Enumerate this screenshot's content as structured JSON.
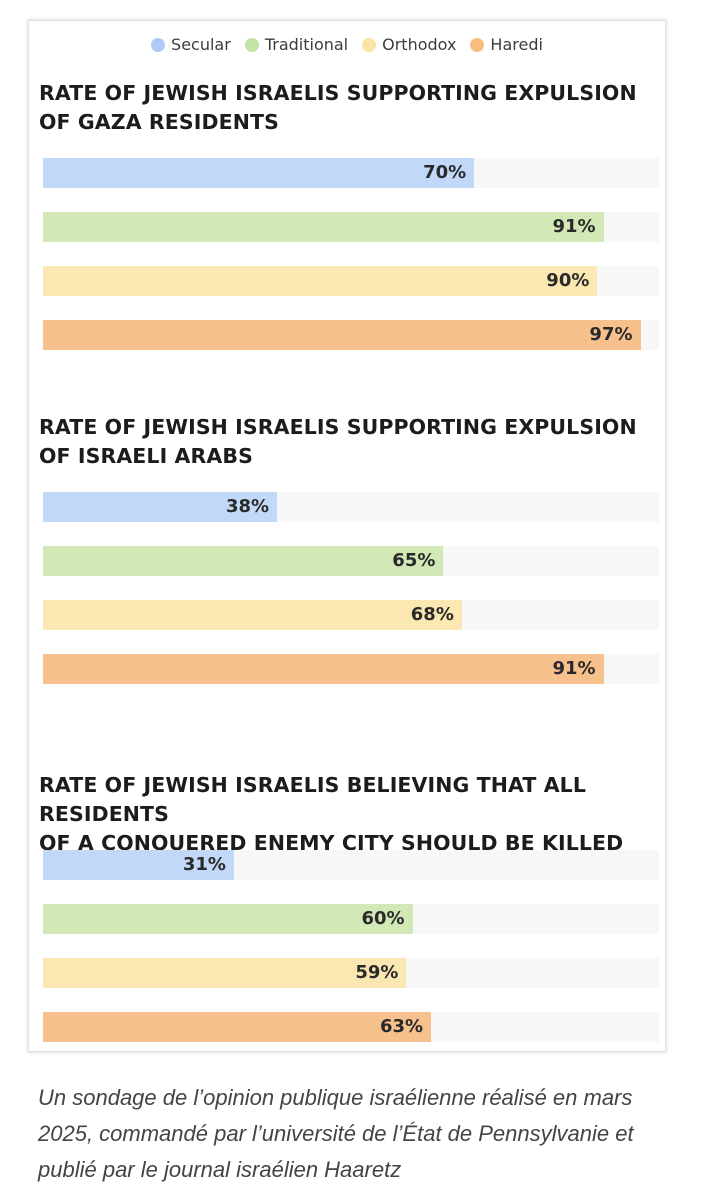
{
  "legend": [
    {
      "label": "Secular",
      "color": "#aecbf6"
    },
    {
      "label": "Traditional",
      "color": "#c5e3a4"
    },
    {
      "label": "Orthodox",
      "color": "#fbe4a6"
    },
    {
      "label": "Haredi",
      "color": "#f7bc80"
    }
  ],
  "bar_colors": {
    "Secular": "#c2d8f8",
    "Traditional": "#d2e8b6",
    "Orthodox": "#fbe7b2",
    "Haredi": "#f7c18e"
  },
  "chart_data": [
    {
      "type": "bar",
      "orientation": "horizontal",
      "title": "RATE OF JEWISH ISRAELIS SUPPORTING EXPULSION OF GAZA RESIDENTS",
      "title_lines": [
        "RATE OF JEWISH ISRAELIS SUPPORTING EXPULSION",
        "OF GAZA RESIDENTS"
      ],
      "categories": [
        "Secular",
        "Traditional",
        "Orthodox",
        "Haredi"
      ],
      "values": [
        70,
        91,
        90,
        97
      ],
      "labels": [
        "70%",
        "91%",
        "90%",
        "97%"
      ],
      "xlim": [
        0,
        100
      ]
    },
    {
      "type": "bar",
      "orientation": "horizontal",
      "title": "RATE OF JEWISH ISRAELIS SUPPORTING EXPULSION OF ISRAELI ARABS",
      "title_lines": [
        "RATE OF JEWISH ISRAELIS SUPPORTING EXPULSION",
        "OF ISRAELI ARABS"
      ],
      "categories": [
        "Secular",
        "Traditional",
        "Orthodox",
        "Haredi"
      ],
      "values": [
        38,
        65,
        68,
        91
      ],
      "labels": [
        "38%",
        "65%",
        "68%",
        "91%"
      ],
      "xlim": [
        0,
        100
      ]
    },
    {
      "type": "bar",
      "orientation": "horizontal",
      "title": "RATE OF JEWISH ISRAELIS BELIEVING THAT ALL RESIDENTS OF A CONQUERED ENEMY CITY SHOULD BE KILLED",
      "title_lines": [
        "RATE OF JEWISH ISRAELIS BELIEVING THAT ALL RESIDENTS",
        "OF A CONQUERED ENEMY CITY SHOULD BE KILLED"
      ],
      "categories": [
        "Secular",
        "Traditional",
        "Orthodox",
        "Haredi"
      ],
      "values": [
        31,
        60,
        59,
        63
      ],
      "labels": [
        "31%",
        "60%",
        "59%",
        "63%"
      ],
      "xlim": [
        0,
        100
      ]
    }
  ],
  "caption": "Un sondage de l’opinion publique israélienne réalisé en mars 2025, commandé par l’université de l’État de Pennsylvanie et publié par le journal israélien Haaretz"
}
